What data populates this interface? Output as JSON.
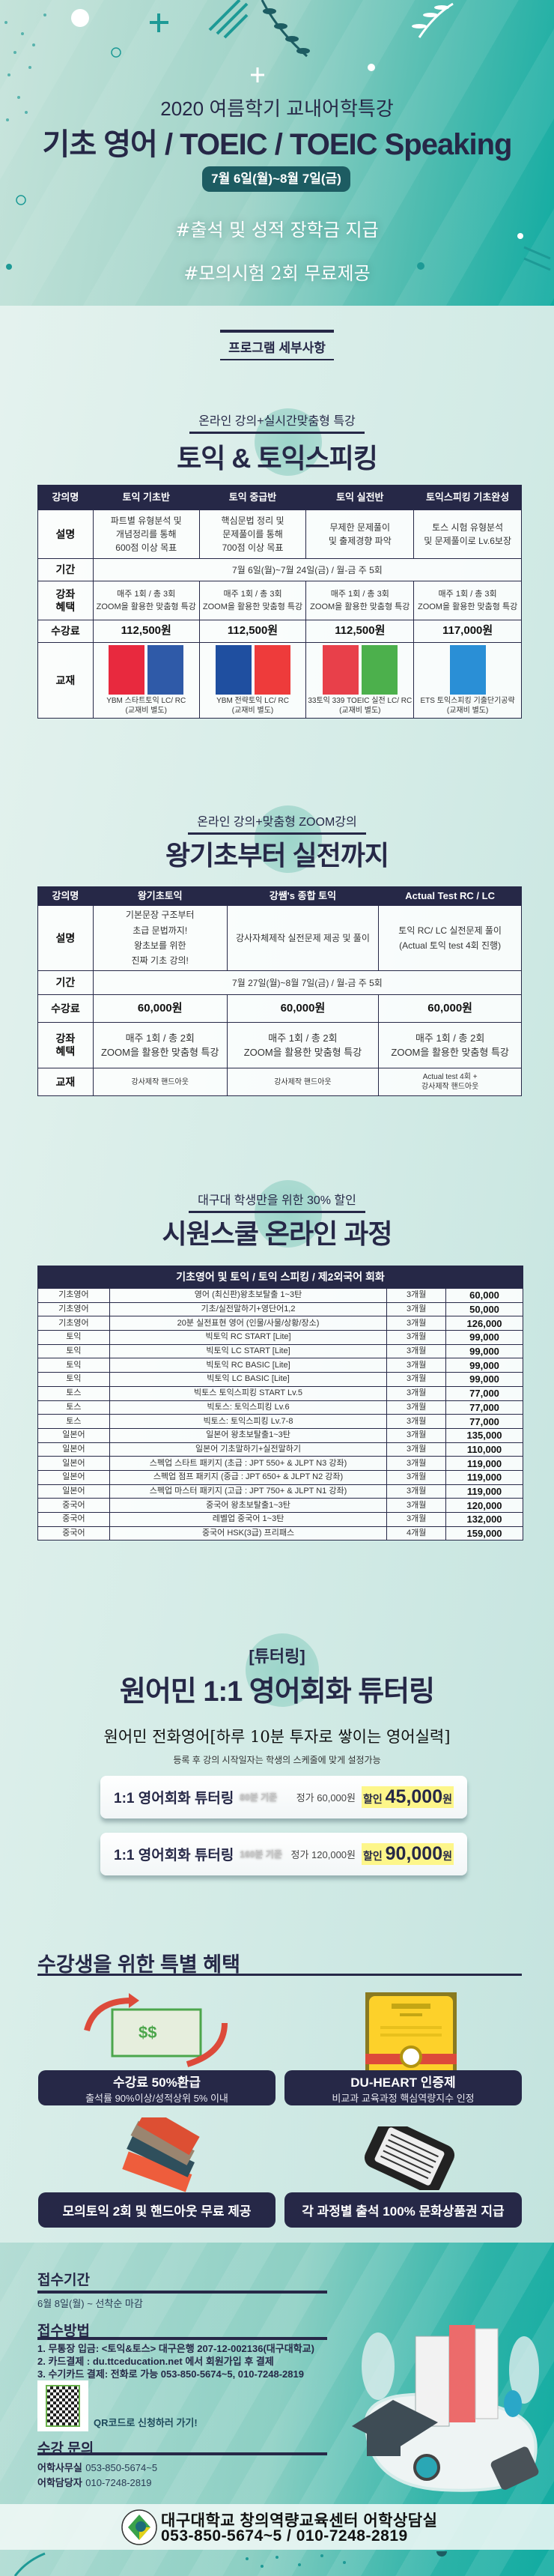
{
  "colors": {
    "navy": "#262847",
    "teal": "#10aba1",
    "badge": "#1d5c62",
    "highlight": "#fdf68a"
  },
  "hero": {
    "subtitle": "2020 여름학기 교내어학특강",
    "title": "기초 영어 / TOEIC / TOEIC Speaking",
    "dates": "7월 6일(월)~8월 7일(금)",
    "hashtag1": "#출석 및 성적 장학금 지급",
    "hashtag2": "#모의시험 2회 무료제공"
  },
  "program_heading": "프로그램 세부사항",
  "toeic": {
    "subtitle": "온라인 강의+실시간맞춤형 특강",
    "title": "토익 & 토익스피킹",
    "row_labels": {
      "name": "강의명",
      "desc": "설명",
      "period": "기간",
      "benefit": "강좌\n혜택",
      "fee": "수강료",
      "book": "교재"
    },
    "period": "7월 6일(월)~7월 24일(금) / 월-금  주 5회",
    "courses": [
      {
        "name": "토익 기초반",
        "desc": "파트별 유형분석 및\n개념정리를 통해\n600점 이상 목표",
        "benefit": "매주 1회 / 총 3회\nZOOM을 활용한 맞춤형 특강",
        "fee": "112,500원",
        "book": "YBM 스타트토익 LC/ RC\n(교재비 별도)",
        "covers": [
          "#e8293e",
          "#2f5aa8"
        ]
      },
      {
        "name": "토익 중급반",
        "desc": "핵심문법 정리 및\n문제풀이를 통해\n700점 이상 목표",
        "benefit": "매주 1회 / 총 3회\nZOOM을 활용한 맞춤형 특강",
        "fee": "112,500원",
        "book": "YBM 전략토익 LC/ RC\n(교재비 별도)",
        "covers": [
          "#1f4fa0",
          "#ee3b3b"
        ]
      },
      {
        "name": "토익 실전반",
        "desc": "무제한 문제풀이\n및 출제경향 파악",
        "benefit": "매주 1회 / 총 3회\nZOOM을 활용한 맞춤형 특강",
        "fee": "112,500원",
        "book": "33토익 339 TOEIC 실전 LC/ RC\n(교재비 별도)",
        "covers": [
          "#e8404a",
          "#4cb04c"
        ]
      },
      {
        "name": "토익스피킹 기초완성",
        "desc": "토스 시험 유형분석\n및 문제풀이로 Lv.6보장",
        "benefit": "매주 1회 / 총 3회\nZOOM을 활용한 맞춤형 특강",
        "fee": "117,000원",
        "book": "ETS 토익스피킹 기출단기공략\n(교재비 별도)",
        "covers": [
          "#2a8fd6"
        ]
      }
    ]
  },
  "basic": {
    "subtitle": "온라인 강의+맞춤형 ZOOM강의",
    "title": "왕기초부터 실전까지",
    "period": "7월 27일(월)~8월 7일(금) / 월-금  주 5회",
    "courses": [
      {
        "name": "왕기초토익",
        "desc": "기본문장 구조부터\n초급 문법까지!\n왕초보를 위한\n진짜 기초 강의!",
        "fee": "60,000원",
        "benefit": "매주 1회 / 총 2회\nZOOM을 활용한 맞춤형 특강",
        "book": "강사제작 핸드아웃"
      },
      {
        "name": "강쌤's 종합 토익",
        "desc": "강사자체제작 실전문제 제공 및 풀이",
        "fee": "60,000원",
        "benefit": "매주 1회 / 총 2회\nZOOM을 활용한 맞춤형 특강",
        "book": "강사제작 핸드아웃"
      },
      {
        "name": "Actual Test RC / LC",
        "desc": "토익 RC/ LC 실전문제 풀이\n(Actual 토익 test 4회 진행)",
        "fee": "60,000원",
        "benefit": "매주 1회 / 총 2회\nZOOM을 활용한 맞춤형 특강",
        "book": "Actual test 4회 +\n강사제작 핸드아웃"
      }
    ]
  },
  "siwon": {
    "subtitle": "대구대 학생만을 위한 30% 할인",
    "title": "시원스쿨 온라인 과정",
    "header": "기초영어 및 토익 / 토익 스피킹 / 제2외국어 회화",
    "rows": [
      [
        "기초영어",
        "영어 (최신판)왕초보탈출 1~3탄",
        "3개월",
        "60,000"
      ],
      [
        "기초영어",
        "기초/실전말하기+영단어1,2",
        "3개월",
        "50,000"
      ],
      [
        "기초영어",
        "20분 실전표현 영어 (인물/사물/상황/장소)",
        "3개월",
        "126,000"
      ],
      [
        "토익",
        "빅토익 RC START [Lite]",
        "3개월",
        "99,000"
      ],
      [
        "토익",
        "빅토익 LC START [Lite]",
        "3개월",
        "99,000"
      ],
      [
        "토익",
        "빅토익 RC BASIC [Lite]",
        "3개월",
        "99,000"
      ],
      [
        "토익",
        "빅토익 LC BASIC [Lite]",
        "3개월",
        "99,000"
      ],
      [
        "토스",
        "빅토스 토익스피킹 START Lv.5",
        "3개월",
        "77,000"
      ],
      [
        "토스",
        "빅토스: 토익스피킹 Lv.6",
        "3개월",
        "77,000"
      ],
      [
        "토스",
        "빅토스: 토익스피킹 Lv.7-8",
        "3개월",
        "77,000"
      ],
      [
        "일본어",
        "일본어 왕초보탈출1~3탄",
        "3개월",
        "135,000"
      ],
      [
        "일본어",
        "일본어 기초말하기+실전말하기",
        "3개월",
        "110,000"
      ],
      [
        "일본어",
        "스펙업 스타트 패키지 (초급 : JPT 550+ & JLPT N3 강좌)",
        "3개월",
        "119,000"
      ],
      [
        "일본어",
        "스펙업 점프 패키지 (중급 : JPT 650+ & JLPT N2 강좌)",
        "3개월",
        "119,000"
      ],
      [
        "일본어",
        "스펙업 마스터 패키지 (고급 : JPT 750+ & JLPT N1 강좌)",
        "3개월",
        "119,000"
      ],
      [
        "중국어",
        "중국어 왕초보탈출1~3탄",
        "3개월",
        "120,000"
      ],
      [
        "중국어",
        "레벨업 중국어 1~3탄",
        "3개월",
        "132,000"
      ],
      [
        "중국어",
        "중국어 HSK(3급) 프리패스",
        "4개월",
        "159,000"
      ]
    ]
  },
  "tutoring": {
    "tag": "[튜터링]",
    "title": "원어민 1:1 영어회화 튜터링",
    "handwritten": "원어민 전화영어[하루 10분 투자로 쌓이는 영어실력]",
    "note": "등록 후 강의 시작일자는 학생의 스케줄에 맞게 설정가능",
    "plans": [
      {
        "name": "1:1 영어회화 튜터링",
        "basis": "80분 기준",
        "regular": "정가 60,000원",
        "discount_label": "할인",
        "price": "45,000",
        "unit": "원"
      },
      {
        "name": "1:1 영어회화 튜터링",
        "basis": "160분 기준",
        "regular": "정가 120,000원",
        "discount_label": "할인",
        "price": "90,000",
        "unit": "원"
      }
    ]
  },
  "benefits": {
    "title": "수강생을 위한 특별 혜택",
    "items": [
      {
        "title": "수강료 50%환급",
        "desc": "출석률 90%이상/성적상위 5% 이내",
        "icon": "money-refund-icon"
      },
      {
        "title": "DU-HEART 인증제",
        "desc": "비교과 교육과정 핵심역량지수 인정",
        "icon": "certificate-icon"
      },
      {
        "title": "모의토익 2회 및 핸드아웃 무료 제공",
        "desc": "",
        "icon": "books-icon"
      },
      {
        "title": "각 과정별 출석 100% 문화상품권 지급",
        "desc": "",
        "icon": "tablet-icon"
      }
    ]
  },
  "info": {
    "period_title": "접수기간",
    "period": "6월 8일(월) ~ 선착순 마감",
    "method_title": "접수방법",
    "methods": [
      "1. 무통장 입금: <토익&토스> 대구은행 207-12-002136(대구대학교)",
      "2. 카드결제 : du.ttceducation.net 에서 회원가입 후 결제",
      "3. 수기카드 결제: 전화로 가능 053-850-5674~5, 010-7248-2819"
    ],
    "qr_text": "QR코드로 신청하러 가기!",
    "contact_title": "수강 문의",
    "contacts": [
      {
        "label": "어학사무실",
        "value": "053-850-5674~5"
      },
      {
        "label": "어학담당자",
        "value": "010-7248-2819"
      }
    ]
  },
  "footer": {
    "org": "대구대학교 창의역량교육센터 어학상담실",
    "phones": "053-850-5674~5 / 010-7248-2819",
    "logo_text": "DAEGU UNIVERSITY"
  }
}
